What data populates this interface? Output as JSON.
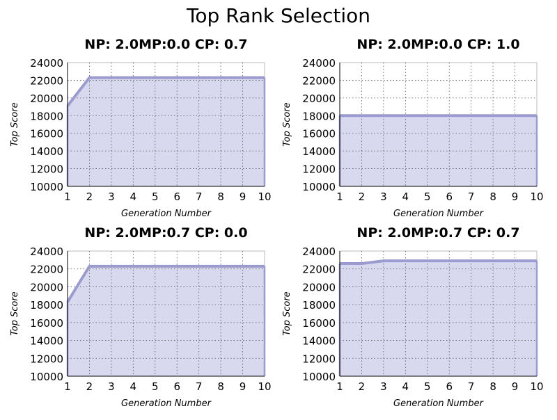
{
  "figure": {
    "title": "Top Rank Selection"
  },
  "chart_data": [
    {
      "type": "area",
      "title": "NP: 2.0MP:0.0 CP: 0.7",
      "xlabel": "Generation Number",
      "ylabel": "Top Score",
      "x": [
        1,
        2,
        3,
        4,
        5,
        6,
        7,
        8,
        9,
        10
      ],
      "series": [
        {
          "values": [
            19100,
            22300,
            22300,
            22300,
            22300,
            22300,
            22300,
            22300,
            22300,
            22300
          ]
        }
      ],
      "xlim": [
        1,
        10
      ],
      "ylim": [
        10000,
        24000
      ],
      "yticks": [
        10000,
        12000,
        14000,
        16000,
        18000,
        20000,
        22000,
        24000
      ],
      "xticks": [
        1,
        2,
        3,
        4,
        5,
        6,
        7,
        8,
        9,
        10
      ],
      "grid": true
    },
    {
      "type": "area",
      "title": "NP: 2.0MP:0.0 CP: 1.0",
      "xlabel": "Generation Number",
      "ylabel": "Top Score",
      "x": [
        1,
        2,
        3,
        4,
        5,
        6,
        7,
        8,
        9,
        10
      ],
      "series": [
        {
          "values": [
            18000,
            18000,
            18000,
            18000,
            18000,
            18000,
            18000,
            18000,
            18000,
            18000
          ]
        }
      ],
      "xlim": [
        1,
        10
      ],
      "ylim": [
        10000,
        24000
      ],
      "yticks": [
        10000,
        12000,
        14000,
        16000,
        18000,
        20000,
        22000,
        24000
      ],
      "xticks": [
        1,
        2,
        3,
        4,
        5,
        6,
        7,
        8,
        9,
        10
      ],
      "grid": true
    },
    {
      "type": "area",
      "title": "NP: 2.0MP:0.7 CP: 0.0",
      "xlabel": "Generation Number",
      "ylabel": "Top Score",
      "x": [
        1,
        2,
        3,
        4,
        5,
        6,
        7,
        8,
        9,
        10
      ],
      "series": [
        {
          "values": [
            18300,
            22300,
            22300,
            22300,
            22300,
            22300,
            22300,
            22300,
            22300,
            22300
          ]
        }
      ],
      "xlim": [
        1,
        10
      ],
      "ylim": [
        10000,
        24000
      ],
      "yticks": [
        10000,
        12000,
        14000,
        16000,
        18000,
        20000,
        22000,
        24000
      ],
      "xticks": [
        1,
        2,
        3,
        4,
        5,
        6,
        7,
        8,
        9,
        10
      ],
      "grid": true
    },
    {
      "type": "area",
      "title": "NP: 2.0MP:0.7 CP: 0.7",
      "xlabel": "Generation Number",
      "ylabel": "Top Score",
      "x": [
        1,
        2,
        3,
        4,
        5,
        6,
        7,
        8,
        9,
        10
      ],
      "series": [
        {
          "values": [
            22600,
            22600,
            22900,
            22900,
            22900,
            22900,
            22900,
            22900,
            22900,
            22900
          ]
        }
      ],
      "xlim": [
        1,
        10
      ],
      "ylim": [
        10000,
        24000
      ],
      "yticks": [
        10000,
        12000,
        14000,
        16000,
        18000,
        20000,
        22000,
        24000
      ],
      "xticks": [
        1,
        2,
        3,
        4,
        5,
        6,
        7,
        8,
        9,
        10
      ],
      "grid": true
    }
  ],
  "style": {
    "fill_color": "#d8d8ee",
    "line_color": "#9b9bd0",
    "grid_color": "#555555",
    "axis_color": "#000000",
    "frame_color": "#bbbbbb"
  }
}
